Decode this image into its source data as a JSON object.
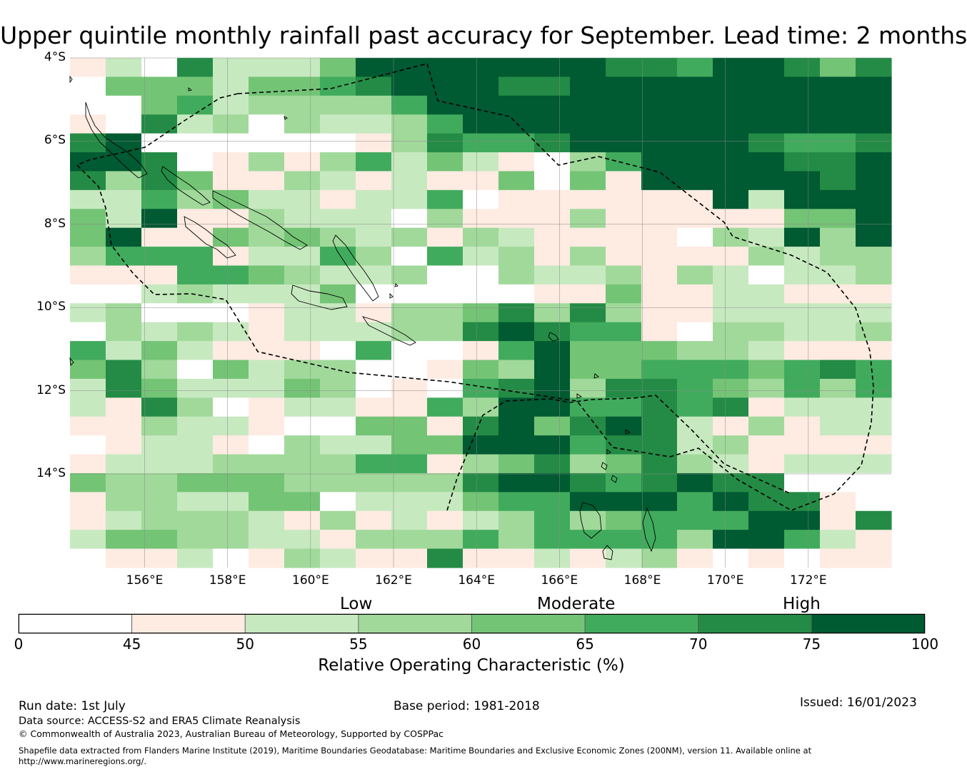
{
  "title": "Upper quintile monthly rainfall past accuracy for September. Lead time: 2 months",
  "map": {
    "lon_range": [
      154.2,
      174.0
    ],
    "lat_range": [
      -4.0,
      -16.25
    ],
    "lat_ticks": [
      -4,
      -6,
      -8,
      -10,
      -12,
      -14
    ],
    "lat_tick_labels": [
      "4°S",
      "6°S",
      "8°S",
      "10°S",
      "12°S",
      "14°S"
    ],
    "lon_ticks": [
      156,
      158,
      160,
      162,
      164,
      166,
      168,
      170,
      172
    ],
    "lon_tick_labels": [
      "156°E",
      "158°E",
      "160°E",
      "162°E",
      "164°E",
      "166°E",
      "168°E",
      "170°E",
      "172°E"
    ],
    "grid_rows": [
      "12062224777777766577646",
      "04442445677766777777777",
      "00452333357777777777777",
      "10623032235777777777777",
      "67000000136556777776556",
      "77601313524210357777667",
      "63641132121140417777767",
      "22534221225011111172777",
      "42711322203111311111447",
      "47114343231321111032737",
      "35551225305231311113233",
      "11155432230032231320223",
      "00232224000001141122111",
      "23000122133463631122222",
      "03232122233676551033223",
      "52421110500157444332111",
      "46304233001437445554565",
      "26422243010567366543535",
      "21630122115377556561222",
      "11322100441674676213122",
      "01221032244777566231111",
      "12223333551346346321222",
      "43344433333677656766000",
      "13322440222455777576610",
      "12333213121235345557716",
      "24433221333535555377521",
      "01120132116112123101011"
    ],
    "colors": [
      "#ffffff",
      "#feebe2",
      "#c7e9c0",
      "#a1d99b",
      "#74c476",
      "#41ab5d",
      "#238b45",
      "#005a32"
    ]
  },
  "colorbar": {
    "category_labels": [
      "Low",
      "Moderate",
      "High"
    ],
    "tick_labels": [
      "0",
      "45",
      "50",
      "55",
      "60",
      "65",
      "70",
      "75",
      "100"
    ],
    "caption": "Relative Operating Characteristic (%)"
  },
  "footer": {
    "run_date": "Run date: 1st July",
    "base_period": "Base period: 1981-2018",
    "issued": "Issued: 16/01/2023",
    "data_source": "Data source: ACCESS-S2 and ERA5 Climate Reanalysis",
    "copyright": "© Commonwealth of Australia 2023, Australian Bureau of Meteorology, Supported by COSPPac",
    "shapefile_line1": "Shapefile data extracted from Flanders Marine Institute (2019), Maritime Boundaries Geodatabase: Maritime Boundaries and Exclusive Economic Zones (200NM), version 11. Available online at",
    "shapefile_line2": "http://www.marineregions.org/."
  }
}
